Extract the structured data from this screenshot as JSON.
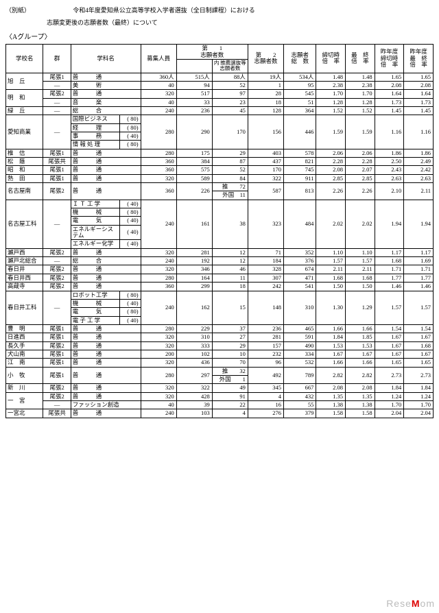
{
  "page": {
    "corner": "（別紙）",
    "title1": "令和4年度愛知県公立高等学校入学者選抜（全日制課程）における",
    "title2": "志願変更後の志願者数（最終）について",
    "group": "〈Aグループ〉"
  },
  "headers": {
    "school": "学校名",
    "gun": "群",
    "dept": "学科名",
    "capacity": "募集人員",
    "app1": "第　　1\n志願者数",
    "app1sub": "内 推薦選抜等\n志願者数",
    "app2": "第　　2\n志願者数",
    "total": "志願者\n総　数",
    "rate1": "締切時\n倍　率",
    "rate2": "最　終\n倍　率",
    "prev1": "昨年度\n締切時\n倍　率",
    "prev2": "昨年度\n最　終\n倍　率"
  },
  "rows": [
    {
      "school": "旭　丘",
      "gun": "尾張1",
      "dept": "普　　　通",
      "cap": "360人",
      "a1": "515人",
      "a1s": "88人",
      "a2": "19人",
      "tot": "534人",
      "r1": "1.48",
      "r2": "1.48",
      "p1": "1.65",
      "p2": "1.65"
    },
    {
      "school": "",
      "gun": "―",
      "dept": "美　　　術",
      "cap": "40",
      "a1": "94",
      "a1s": "52",
      "a2": "1",
      "tot": "95",
      "r1": "2.38",
      "r2": "2.38",
      "p1": "2.08",
      "p2": "2.08"
    },
    {
      "school": "明　和",
      "gun": "尾張2",
      "dept": "普　　　通",
      "cap": "320",
      "a1": "517",
      "a1s": "97",
      "a2": "28",
      "tot": "545",
      "r1": "1.70",
      "r2": "1.70",
      "p1": "1.64",
      "p2": "1.64"
    },
    {
      "school": "",
      "gun": "―",
      "dept": "音　　　楽",
      "cap": "40",
      "a1": "33",
      "a1s": "23",
      "a2": "18",
      "tot": "51",
      "r1": "1.28",
      "r2": "1.28",
      "p1": "1.73",
      "p2": "1.73"
    },
    {
      "school": "緑　丘",
      "gun": "―",
      "dept": "総　　　合",
      "cap": "240",
      "a1": "236",
      "a1s": "45",
      "a2": "128",
      "tot": "364",
      "r1": "1.52",
      "r2": "1.52",
      "p1": "1.45",
      "p2": "1.45"
    }
  ],
  "aichi": {
    "school": "愛知商業",
    "gun": "―",
    "depts": [
      {
        "n": "国際ビジネス",
        "c": "( 80)"
      },
      {
        "n": "経　　　理",
        "c": "( 80)"
      },
      {
        "n": "事　　　務",
        "c": "( 40)"
      },
      {
        "n": "情 報 処 理",
        "c": "( 80)"
      }
    ],
    "cap": "280",
    "a1": "290",
    "a1s": "170",
    "a2": "156",
    "tot": "446",
    "r1": "1.59",
    "r2": "1.59",
    "p1": "1.16",
    "p2": "1.16"
  },
  "block2": [
    {
      "school": "椎　信",
      "gun": "尾張1",
      "dept": "普　　　通",
      "cap": "280",
      "a1": "175",
      "a1s": "29",
      "a2": "403",
      "tot": "578",
      "r1": "2.06",
      "r2": "2.06",
      "p1": "1.86",
      "p2": "1.86"
    },
    {
      "school": "松　蔭",
      "gun": "尾張共",
      "dept": "普　　　通",
      "cap": "360",
      "a1": "384",
      "a1s": "87",
      "a2": "437",
      "tot": "821",
      "r1": "2.28",
      "r2": "2.28",
      "p1": "2.50",
      "p2": "2.49"
    },
    {
      "school": "昭　和",
      "gun": "尾張1",
      "dept": "普　　　通",
      "cap": "360",
      "a1": "575",
      "a1s": "52",
      "a2": "170",
      "tot": "745",
      "r1": "2.08",
      "r2": "2.07",
      "p1": "2.43",
      "p2": "2.42"
    },
    {
      "school": "熱　田",
      "gun": "尾張1",
      "dept": "普　　　通",
      "cap": "320",
      "a1": "589",
      "a1s": "84",
      "a2": "322",
      "tot": "911",
      "r1": "2.85",
      "r2": "2.85",
      "p1": "2.63",
      "p2": "2.63"
    }
  ],
  "nagoyaminami": {
    "school": "名古屋南",
    "gun": "尾張2",
    "dept": "普　　　通",
    "cap": "360",
    "a1": "226",
    "sub1l": "推",
    "sub1v": "72",
    "sub2l": "外国",
    "sub2v": "11",
    "a2": "587",
    "tot": "813",
    "r1": "2.26",
    "r2": "2.26",
    "p1": "2.10",
    "p2": "2.11"
  },
  "nagoyakoka": {
    "school": "名古屋工科",
    "gun": "―",
    "depts": [
      {
        "n": "Ｉ Ｔ 工 学",
        "c": "( 40)"
      },
      {
        "n": "機　　　械",
        "c": "( 80)"
      },
      {
        "n": "電　　　気",
        "c": "( 40)"
      },
      {
        "n": "エネルギーシステム",
        "c": "( 40)"
      },
      {
        "n": "エネルギー化学",
        "c": "( 40)"
      }
    ],
    "cap": "240",
    "a1": "161",
    "a1s": "38",
    "a2": "323",
    "tot": "484",
    "r1": "2.02",
    "r2": "2.02",
    "p1": "1.94",
    "p2": "1.94"
  },
  "block3": [
    {
      "school": "瀬戸西",
      "gun": "尾張2",
      "dept": "普　　　通",
      "cap": "320",
      "a1": "281",
      "a1s": "12",
      "a2": "71",
      "tot": "352",
      "r1": "1.10",
      "r2": "1.10",
      "p1": "1.17",
      "p2": "1.17"
    },
    {
      "school": "瀬戸北総合",
      "gun": "―",
      "dept": "総　　　合",
      "cap": "240",
      "a1": "192",
      "a1s": "12",
      "a2": "184",
      "tot": "376",
      "r1": "1.57",
      "r2": "1.57",
      "p1": "1.68",
      "p2": "1.69"
    },
    {
      "school": "春日井",
      "gun": "尾張2",
      "dept": "普　　　通",
      "cap": "320",
      "a1": "346",
      "a1s": "46",
      "a2": "328",
      "tot": "674",
      "r1": "2.11",
      "r2": "2.11",
      "p1": "1.71",
      "p2": "1.71"
    },
    {
      "school": "春日井西",
      "gun": "尾張2",
      "dept": "普　　　通",
      "cap": "280",
      "a1": "164",
      "a1s": "11",
      "a2": "307",
      "tot": "471",
      "r1": "1.68",
      "r2": "1.68",
      "p1": "1.77",
      "p2": "1.77"
    },
    {
      "school": "高蔵寺",
      "gun": "尾張2",
      "dept": "普　　　通",
      "cap": "360",
      "a1": "299",
      "a1s": "18",
      "a2": "242",
      "tot": "541",
      "r1": "1.50",
      "r2": "1.50",
      "p1": "1.46",
      "p2": "1.46"
    }
  ],
  "kasugaikoka": {
    "school": "春日井工科",
    "gun": "―",
    "depts": [
      {
        "n": "ロボット工学",
        "c": "( 80)"
      },
      {
        "n": "機　　　械",
        "c": "( 40)"
      },
      {
        "n": "電　　　気",
        "c": "( 80)"
      },
      {
        "n": "電 子 工 学",
        "c": "( 40)"
      }
    ],
    "cap": "240",
    "a1": "162",
    "a1s": "15",
    "a2": "148",
    "tot": "310",
    "r1": "1.30",
    "r2": "1.29",
    "p1": "1.57",
    "p2": "1.57"
  },
  "block4": [
    {
      "school": "豊　明",
      "gun": "尾張1",
      "dept": "普　　　通",
      "cap": "280",
      "a1": "229",
      "a1s": "37",
      "a2": "236",
      "tot": "465",
      "r1": "1.66",
      "r2": "1.66",
      "p1": "1.54",
      "p2": "1.54"
    },
    {
      "school": "日進西",
      "gun": "尾張1",
      "dept": "普　　　通",
      "cap": "320",
      "a1": "310",
      "a1s": "27",
      "a2": "281",
      "tot": "591",
      "r1": "1.84",
      "r2": "1.85",
      "p1": "1.67",
      "p2": "1.67"
    },
    {
      "school": "長久手",
      "gun": "尾張2",
      "dept": "普　　　通",
      "cap": "320",
      "a1": "333",
      "a1s": "29",
      "a2": "157",
      "tot": "490",
      "r1": "1.53",
      "r2": "1.53",
      "p1": "1.67",
      "p2": "1.68"
    },
    {
      "school": "犬山南",
      "gun": "尾張1",
      "dept": "普　　　通",
      "cap": "200",
      "a1": "102",
      "a1s": "10",
      "a2": "232",
      "tot": "334",
      "r1": "1.67",
      "r2": "1.67",
      "p1": "1.67",
      "p2": "1.67"
    },
    {
      "school": "江　南",
      "gun": "尾張1",
      "dept": "普　　　通",
      "cap": "320",
      "a1": "436",
      "a1s": "70",
      "a2": "96",
      "tot": "532",
      "r1": "1.66",
      "r2": "1.66",
      "p1": "1.65",
      "p2": "1.65"
    }
  ],
  "komaki": {
    "school": "小　牧",
    "gun": "尾張1",
    "dept": "普　　　通",
    "cap": "280",
    "a1": "297",
    "sub1l": "推",
    "sub1v": "32",
    "sub2l": "外国",
    "sub2v": "1",
    "a2": "492",
    "tot": "789",
    "r1": "2.82",
    "r2": "2.82",
    "p1": "2.73",
    "p2": "2.73"
  },
  "block5": [
    {
      "school": "新　川",
      "gun": "尾張2",
      "dept": "普　　　通",
      "cap": "320",
      "a1": "322",
      "a1s": "49",
      "a2": "345",
      "tot": "667",
      "r1": "2.08",
      "r2": "2.08",
      "p1": "1.84",
      "p2": "1.84"
    }
  ],
  "ichinomiya": [
    {
      "school": "一　宮",
      "gun": "尾張2",
      "dept": "普　　　通",
      "cap": "320",
      "a1": "428",
      "a1s": "91",
      "a2": "4",
      "tot": "432",
      "r1": "1.35",
      "r2": "1.35",
      "p1": "1.24",
      "p2": "1.24"
    },
    {
      "school": "",
      "gun": "―",
      "dept": "ファッション創造",
      "cap": "40",
      "a1": "39",
      "a1s": "22",
      "a2": "16",
      "tot": "55",
      "r1": "1.38",
      "r2": "1.38",
      "p1": "1.70",
      "p2": "1.70"
    }
  ],
  "block6": [
    {
      "school": "一宮北",
      "gun": "尾張共",
      "dept": "普　　　通",
      "cap": "240",
      "a1": "103",
      "a1s": "4",
      "a2": "276",
      "tot": "379",
      "r1": "1.58",
      "r2": "1.58",
      "p1": "2.04",
      "p2": "2.04"
    }
  ],
  "watermark": {
    "a": "Rese",
    "b": "M",
    "c": "om"
  }
}
